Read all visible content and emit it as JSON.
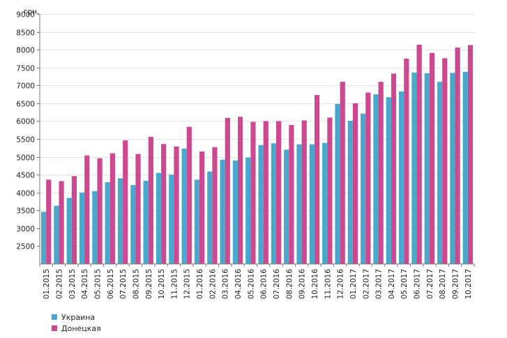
{
  "chart_data": {
    "type": "bar",
    "unit_label": "грн.",
    "ylim": [
      2000,
      9000
    ],
    "yticks": [
      2500,
      3000,
      3500,
      4000,
      4500,
      5000,
      5500,
      6000,
      6500,
      7000,
      7500,
      8000,
      8500,
      9000
    ],
    "grid": true,
    "legend_position": "bottom-left",
    "categories": [
      "01.2015",
      "02.2015",
      "03.2015",
      "04.2015",
      "05.2015",
      "06.2015",
      "07.2015",
      "08.2015",
      "09.2015",
      "10.2015",
      "11.2015",
      "12.2015",
      "01.2016",
      "02.2016",
      "03.2016",
      "04.2016",
      "05.2016",
      "06.2016",
      "07.2016",
      "08.2016",
      "09.2016",
      "10.2016",
      "11.2016",
      "12.2016",
      "01.2017",
      "02.2017",
      "03.2017",
      "04.2017",
      "05.2017",
      "06.2017",
      "07.2017",
      "08.2017",
      "09.2017",
      "10.2017"
    ],
    "series": [
      {
        "name": "Украина",
        "color": "#4aa8cc",
        "values": [
          3460,
          3630,
          3850,
          4000,
          4040,
          4290,
          4400,
          4210,
          4330,
          4550,
          4500,
          5230,
          4360,
          4590,
          4920,
          4900,
          4980,
          5330,
          5380,
          5200,
          5350,
          5350,
          5390,
          6480,
          6010,
          6210,
          6750,
          6670,
          6830,
          7360,
          7340,
          7100,
          7350,
          7380
        ]
      },
      {
        "name": "Донецкая",
        "color": "#cc4990",
        "values": [
          4360,
          4320,
          4460,
          5040,
          4960,
          5100,
          5460,
          5080,
          5560,
          5360,
          5290,
          5840,
          5150,
          5270,
          6090,
          6120,
          5980,
          6000,
          6000,
          5890,
          6020,
          6730,
          6100,
          7100,
          6500,
          6800,
          7100,
          7330,
          7750,
          8140,
          7910,
          7760,
          8060,
          8130
        ]
      }
    ]
  }
}
